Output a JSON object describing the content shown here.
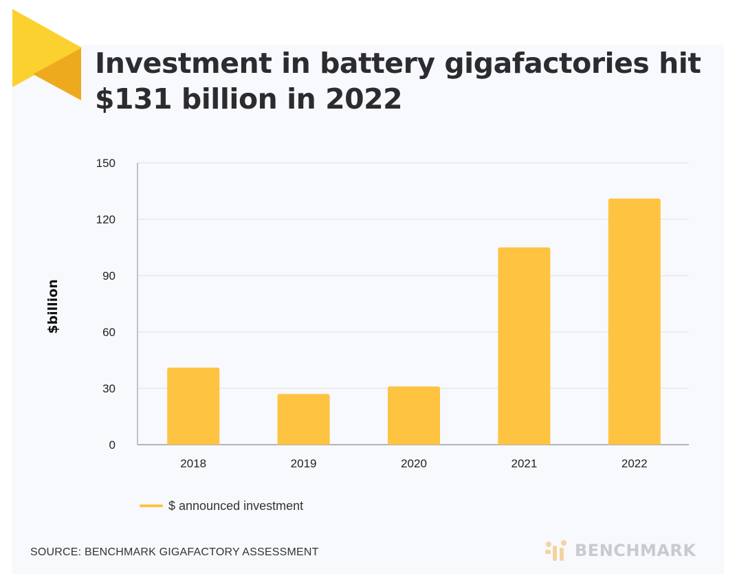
{
  "colors": {
    "bar": "#fec340",
    "grid": "#e6e8ee",
    "axis": "#9a9ca3",
    "accent_yellow": "#fbd130",
    "accent_orange": "#eeaa1e",
    "brand_gray": "#c9cacd"
  },
  "title_line1": "Investment in battery gigafactories hit",
  "title_line2": "$131 billion in 2022",
  "source": "SOURCE: BENCHMARK GIGAFACTORY ASSESSMENT",
  "brand": {
    "name": "BENCHMARK",
    "icon": "benchmark-logo-icon"
  },
  "chart_data": {
    "type": "bar",
    "title": "Investment in battery gigafactories hit $131 billion in 2022",
    "xlabel": "",
    "ylabel": "$billion",
    "categories": [
      "2018",
      "2019",
      "2020",
      "2021",
      "2022"
    ],
    "series": [
      {
        "name": "$ announced investment",
        "values": [
          41,
          27,
          31,
          105,
          131
        ]
      }
    ],
    "ylim": [
      0,
      150
    ],
    "yticks": [
      0,
      30,
      60,
      90,
      120,
      150
    ],
    "grid": true,
    "legend": "bottom-left"
  }
}
